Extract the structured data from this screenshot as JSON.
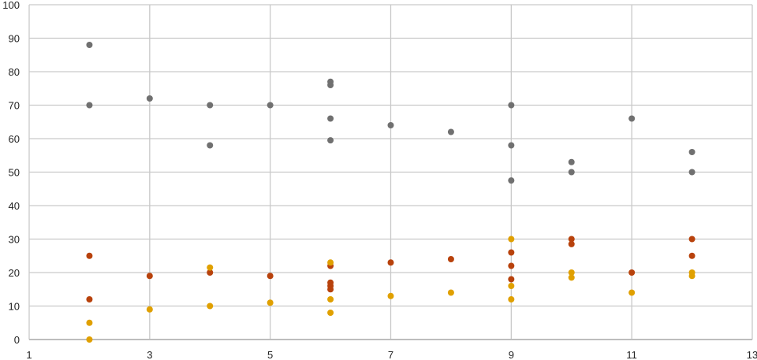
{
  "chart_data": {
    "type": "scatter",
    "title": "",
    "xlabel": "",
    "ylabel": "",
    "xlim": [
      1,
      13
    ],
    "ylim": [
      0,
      100
    ],
    "x_ticks": [
      1,
      3,
      5,
      7,
      9,
      11,
      13
    ],
    "y_ticks": [
      0,
      10,
      20,
      30,
      40,
      50,
      60,
      70,
      80,
      90,
      100
    ],
    "grid": true,
    "legend": "none",
    "series": [
      {
        "color": "#707070",
        "points": [
          [
            2,
            88
          ],
          [
            2,
            70
          ],
          [
            3,
            72
          ],
          [
            4,
            70
          ],
          [
            4,
            58
          ],
          [
            5,
            70
          ],
          [
            6,
            77
          ],
          [
            6,
            76
          ],
          [
            6,
            66
          ],
          [
            6,
            59.5
          ],
          [
            7,
            64
          ],
          [
            8,
            62
          ],
          [
            9,
            70
          ],
          [
            9,
            58
          ],
          [
            9,
            47.5
          ],
          [
            10,
            53
          ],
          [
            10,
            50
          ],
          [
            11,
            66
          ],
          [
            12,
            56
          ],
          [
            12,
            50
          ]
        ]
      },
      {
        "color": "#b8420c",
        "points": [
          [
            2,
            25
          ],
          [
            2,
            12
          ],
          [
            3,
            19
          ],
          [
            4,
            20
          ],
          [
            5,
            19
          ],
          [
            6,
            22
          ],
          [
            6,
            17
          ],
          [
            6,
            16
          ],
          [
            6,
            15
          ],
          [
            7,
            23
          ],
          [
            8,
            24
          ],
          [
            9,
            26
          ],
          [
            9,
            22
          ],
          [
            9,
            18
          ],
          [
            10,
            30
          ],
          [
            10,
            28.5
          ],
          [
            11,
            20
          ],
          [
            12,
            30
          ],
          [
            12,
            25
          ]
        ]
      },
      {
        "color": "#e0a000",
        "points": [
          [
            2,
            5
          ],
          [
            2,
            0
          ],
          [
            3,
            9
          ],
          [
            4,
            21.5
          ],
          [
            4,
            10
          ],
          [
            5,
            11
          ],
          [
            6,
            23
          ],
          [
            6,
            12
          ],
          [
            6,
            8
          ],
          [
            7,
            13
          ],
          [
            8,
            14
          ],
          [
            9,
            30
          ],
          [
            9,
            16
          ],
          [
            9,
            12
          ],
          [
            10,
            20
          ],
          [
            10,
            18.5
          ],
          [
            11,
            14
          ],
          [
            12,
            20
          ],
          [
            12,
            19
          ]
        ]
      }
    ]
  }
}
